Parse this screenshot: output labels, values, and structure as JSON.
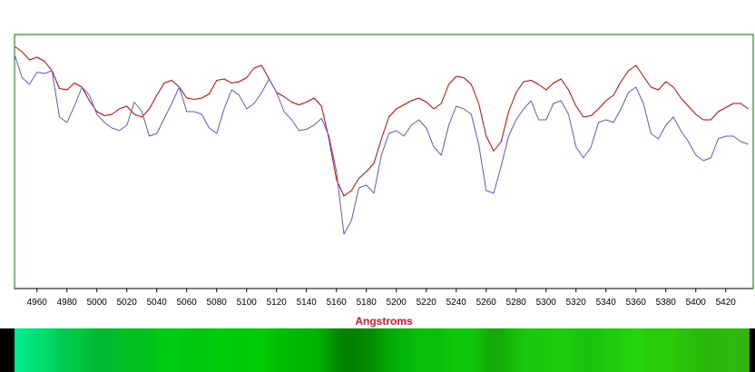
{
  "chart_data": {
    "type": "line",
    "title": "",
    "xlabel": "Angstroms",
    "ylabel": "",
    "xlim": [
      4945,
      5440
    ],
    "ylim": [
      0,
      1
    ],
    "grid": false,
    "legend": "none",
    "x_ticks": [
      4960,
      4980,
      5000,
      5020,
      5040,
      5060,
      5080,
      5100,
      5120,
      5140,
      5160,
      5180,
      5200,
      5220,
      5240,
      5260,
      5280,
      5300,
      5320,
      5340,
      5360,
      5380,
      5400,
      5420
    ],
    "series": [
      {
        "color": "#cc0000",
        "x": [
          4945,
          4950,
          4955,
          4960,
          4965,
          4970,
          4975,
          4980,
          4985,
          4990,
          4995,
          5000,
          5005,
          5010,
          5015,
          5020,
          5025,
          5030,
          5035,
          5040,
          5045,
          5050,
          5055,
          5060,
          5065,
          5070,
          5075,
          5080,
          5085,
          5090,
          5095,
          5100,
          5105,
          5110,
          5115,
          5120,
          5125,
          5130,
          5135,
          5140,
          5145,
          5150,
          5155,
          5160,
          5165,
          5170,
          5175,
          5180,
          5185,
          5190,
          5195,
          5200,
          5205,
          5210,
          5215,
          5220,
          5225,
          5230,
          5235,
          5240,
          5245,
          5250,
          5255,
          5260,
          5265,
          5270,
          5275,
          5280,
          5285,
          5290,
          5295,
          5300,
          5305,
          5310,
          5315,
          5320,
          5325,
          5330,
          5335,
          5340,
          5345,
          5350,
          5355,
          5360,
          5365,
          5370,
          5375,
          5380,
          5385,
          5390,
          5395,
          5400,
          5405,
          5410,
          5415,
          5420,
          5425,
          5430,
          5435,
          5440
        ],
        "values": [
          0.93,
          0.91,
          0.88,
          0.89,
          0.875,
          0.84,
          0.775,
          0.77,
          0.795,
          0.78,
          0.73,
          0.69,
          0.675,
          0.68,
          0.7,
          0.71,
          0.68,
          0.67,
          0.7,
          0.75,
          0.795,
          0.805,
          0.78,
          0.74,
          0.735,
          0.74,
          0.755,
          0.805,
          0.81,
          0.795,
          0.8,
          0.815,
          0.85,
          0.86,
          0.81,
          0.76,
          0.745,
          0.725,
          0.715,
          0.725,
          0.74,
          0.71,
          0.59,
          0.44,
          0.38,
          0.4,
          0.445,
          0.47,
          0.5,
          0.59,
          0.67,
          0.7,
          0.715,
          0.73,
          0.74,
          0.725,
          0.7,
          0.72,
          0.79,
          0.82,
          0.815,
          0.79,
          0.72,
          0.6,
          0.545,
          0.58,
          0.69,
          0.76,
          0.8,
          0.805,
          0.79,
          0.77,
          0.795,
          0.81,
          0.77,
          0.71,
          0.67,
          0.675,
          0.7,
          0.73,
          0.75,
          0.8,
          0.84,
          0.86,
          0.82,
          0.78,
          0.77,
          0.8,
          0.78,
          0.74,
          0.71,
          0.68,
          0.66,
          0.66,
          0.69,
          0.705,
          0.72,
          0.72,
          0.7,
          0.72
        ]
      },
      {
        "color": "#5a5ad8",
        "x": [
          4945,
          4950,
          4955,
          4960,
          4965,
          4970,
          4975,
          4980,
          4985,
          4990,
          4995,
          5000,
          5005,
          5010,
          5015,
          5020,
          5025,
          5030,
          5035,
          5040,
          5045,
          5050,
          5055,
          5060,
          5065,
          5070,
          5075,
          5080,
          5085,
          5090,
          5095,
          5100,
          5105,
          5110,
          5115,
          5120,
          5125,
          5130,
          5135,
          5140,
          5145,
          5150,
          5155,
          5160,
          5165,
          5170,
          5175,
          5180,
          5185,
          5190,
          5195,
          5200,
          5205,
          5210,
          5215,
          5220,
          5225,
          5230,
          5235,
          5240,
          5245,
          5250,
          5255,
          5260,
          5265,
          5270,
          5275,
          5280,
          5285,
          5290,
          5295,
          5300,
          5305,
          5310,
          5315,
          5320,
          5325,
          5330,
          5335,
          5340,
          5345,
          5350,
          5355,
          5360,
          5365,
          5370,
          5375,
          5380,
          5385,
          5390,
          5395,
          5400,
          5405,
          5410,
          5415,
          5420,
          5425,
          5430,
          5435,
          5440
        ],
        "values": [
          0.9,
          0.815,
          0.79,
          0.835,
          0.83,
          0.84,
          0.67,
          0.65,
          0.71,
          0.78,
          0.75,
          0.68,
          0.65,
          0.63,
          0.62,
          0.64,
          0.725,
          0.69,
          0.6,
          0.61,
          0.665,
          0.72,
          0.78,
          0.69,
          0.69,
          0.68,
          0.63,
          0.61,
          0.7,
          0.77,
          0.75,
          0.7,
          0.72,
          0.76,
          0.81,
          0.76,
          0.69,
          0.66,
          0.62,
          0.625,
          0.64,
          0.665,
          0.6,
          0.47,
          0.24,
          0.29,
          0.41,
          0.42,
          0.39,
          0.53,
          0.61,
          0.62,
          0.6,
          0.64,
          0.66,
          0.63,
          0.56,
          0.53,
          0.64,
          0.71,
          0.7,
          0.68,
          0.57,
          0.4,
          0.39,
          0.49,
          0.6,
          0.66,
          0.7,
          0.73,
          0.66,
          0.66,
          0.72,
          0.73,
          0.68,
          0.56,
          0.52,
          0.56,
          0.65,
          0.66,
          0.65,
          0.7,
          0.76,
          0.78,
          0.72,
          0.61,
          0.59,
          0.64,
          0.67,
          0.62,
          0.58,
          0.53,
          0.51,
          0.52,
          0.59,
          0.6,
          0.6,
          0.58,
          0.57,
          0.6
        ]
      }
    ]
  }
}
